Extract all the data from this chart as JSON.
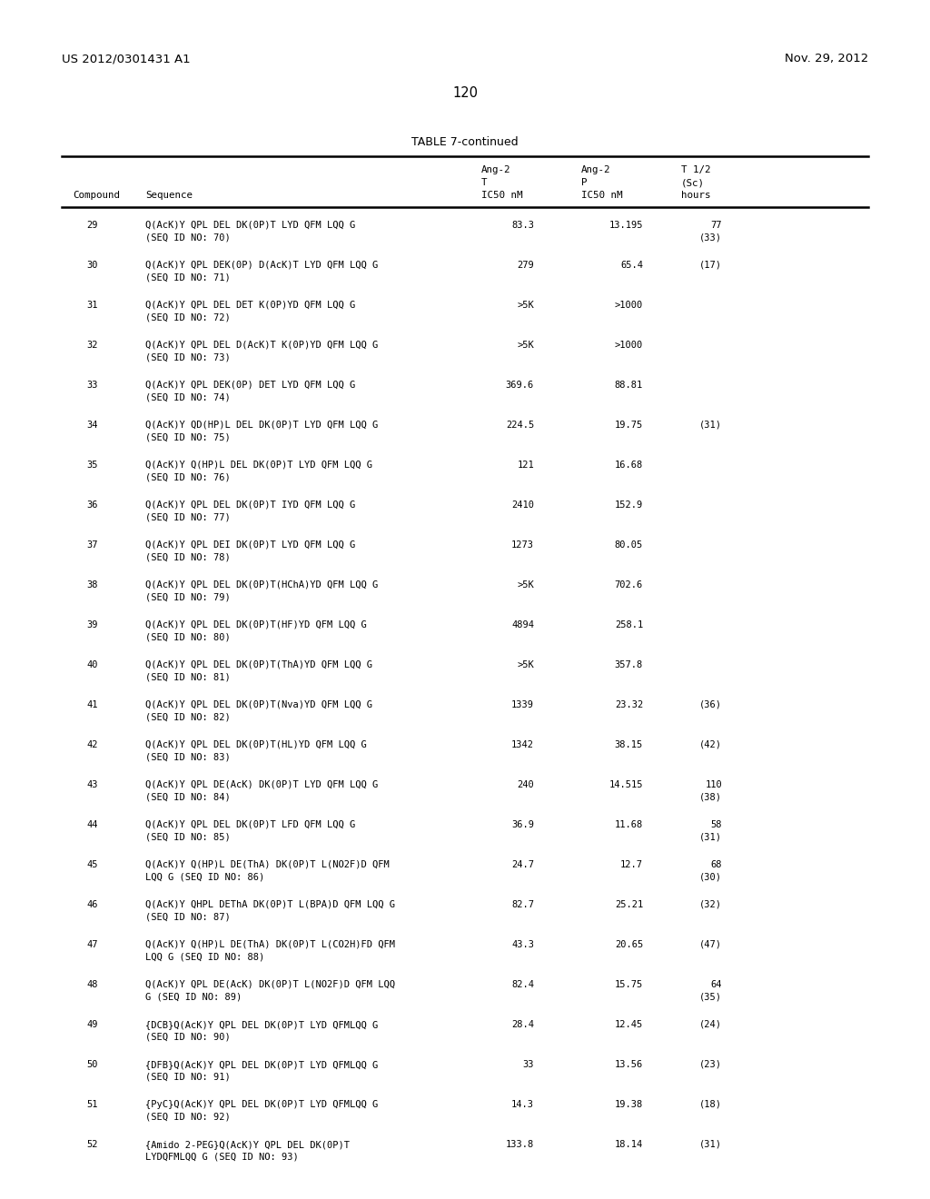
{
  "header_left": "US 2012/0301431 A1",
  "header_right": "Nov. 29, 2012",
  "page_number": "120",
  "table_title": "TABLE 7-continued",
  "rows": [
    {
      "num": "29",
      "seq1": "Q(AcK)Y QPL DEL DK(0P)T LYD QFM LQQ G",
      "seq2": "(SEQ ID NO: 70)",
      "ang2t": "83.3",
      "ang2p": "13.195",
      "half1": "77",
      "half2": "(33)"
    },
    {
      "num": "30",
      "seq1": "Q(AcK)Y QPL DEK(0P) D(AcK)T LYD QFM LQQ G",
      "seq2": "(SEQ ID NO: 71)",
      "ang2t": "279",
      "ang2p": "65.4",
      "half1": "(17)",
      "half2": ""
    },
    {
      "num": "31",
      "seq1": "Q(AcK)Y QPL DEL DET K(0P)YD QFM LQQ G",
      "seq2": "(SEQ ID NO: 72)",
      "ang2t": ">5K",
      "ang2p": ">1000",
      "half1": "",
      "half2": ""
    },
    {
      "num": "32",
      "seq1": "Q(AcK)Y QPL DEL D(AcK)T K(0P)YD QFM LQQ G",
      "seq2": "(SEQ ID NO: 73)",
      "ang2t": ">5K",
      "ang2p": ">1000",
      "half1": "",
      "half2": ""
    },
    {
      "num": "33",
      "seq1": "Q(AcK)Y QPL DEK(0P) DET LYD QFM LQQ G",
      "seq2": "(SEQ ID NO: 74)",
      "ang2t": "369.6",
      "ang2p": "88.81",
      "half1": "",
      "half2": ""
    },
    {
      "num": "34",
      "seq1": "Q(AcK)Y QD(HP)L DEL DK(0P)T LYD QFM LQQ G",
      "seq2": "(SEQ ID NO: 75)",
      "ang2t": "224.5",
      "ang2p": "19.75",
      "half1": "(31)",
      "half2": ""
    },
    {
      "num": "35",
      "seq1": "Q(AcK)Y Q(HP)L DEL DK(0P)T LYD QFM LQQ G",
      "seq2": "(SEQ ID NO: 76)",
      "ang2t": "121",
      "ang2p": "16.68",
      "half1": "",
      "half2": ""
    },
    {
      "num": "36",
      "seq1": "Q(AcK)Y QPL DEL DK(0P)T IYD QFM LQQ G",
      "seq2": "(SEQ ID NO: 77)",
      "ang2t": "2410",
      "ang2p": "152.9",
      "half1": "",
      "half2": ""
    },
    {
      "num": "37",
      "seq1": "Q(AcK)Y QPL DEI DK(0P)T LYD QFM LQQ G",
      "seq2": "(SEQ ID NO: 78)",
      "ang2t": "1273",
      "ang2p": "80.05",
      "half1": "",
      "half2": ""
    },
    {
      "num": "38",
      "seq1": "Q(AcK)Y QPL DEL DK(0P)T(HChA)YD QFM LQQ G",
      "seq2": "(SEQ ID NO: 79)",
      "ang2t": ">5K",
      "ang2p": "702.6",
      "half1": "",
      "half2": ""
    },
    {
      "num": "39",
      "seq1": "Q(AcK)Y QPL DEL DK(0P)T(HF)YD QFM LQQ G",
      "seq2": "(SEQ ID NO: 80)",
      "ang2t": "4894",
      "ang2p": "258.1",
      "half1": "",
      "half2": ""
    },
    {
      "num": "40",
      "seq1": "Q(AcK)Y QPL DEL DK(0P)T(ThA)YD QFM LQQ G",
      "seq2": "(SEQ ID NO: 81)",
      "ang2t": ">5K",
      "ang2p": "357.8",
      "half1": "",
      "half2": ""
    },
    {
      "num": "41",
      "seq1": "Q(AcK)Y QPL DEL DK(0P)T(Nva)YD QFM LQQ G",
      "seq2": "(SEQ ID NO: 82)",
      "ang2t": "1339",
      "ang2p": "23.32",
      "half1": "(36)",
      "half2": ""
    },
    {
      "num": "42",
      "seq1": "Q(AcK)Y QPL DEL DK(0P)T(HL)YD QFM LQQ G",
      "seq2": "(SEQ ID NO: 83)",
      "ang2t": "1342",
      "ang2p": "38.15",
      "half1": "(42)",
      "half2": ""
    },
    {
      "num": "43",
      "seq1": "Q(AcK)Y QPL DE(AcK) DK(0P)T LYD QFM LQQ G",
      "seq2": "(SEQ ID NO: 84)",
      "ang2t": "240",
      "ang2p": "14.515",
      "half1": "110",
      "half2": "(38)"
    },
    {
      "num": "44",
      "seq1": "Q(AcK)Y QPL DEL DK(0P)T LFD QFM LQQ G",
      "seq2": "(SEQ ID NO: 85)",
      "ang2t": "36.9",
      "ang2p": "11.68",
      "half1": "58",
      "half2": "(31)"
    },
    {
      "num": "45",
      "seq1": "Q(AcK)Y Q(HP)L DE(ThA) DK(0P)T L(NO2F)D QFM",
      "seq2": "LQQ G (SEQ ID NO: 86)",
      "ang2t": "24.7",
      "ang2p": "12.7",
      "half1": "68",
      "half2": "(30)"
    },
    {
      "num": "46",
      "seq1": "Q(AcK)Y QHPL DEThA DK(0P)T L(BPA)D QFM LQQ G",
      "seq2": "(SEQ ID NO: 87)",
      "ang2t": "82.7",
      "ang2p": "25.21",
      "half1": "(32)",
      "half2": ""
    },
    {
      "num": "47",
      "seq1": "Q(AcK)Y Q(HP)L DE(ThA) DK(0P)T L(CO2H)FD QFM",
      "seq2": "LQQ G (SEQ ID NO: 88)",
      "ang2t": "43.3",
      "ang2p": "20.65",
      "half1": "(47)",
      "half2": ""
    },
    {
      "num": "48",
      "seq1": "Q(AcK)Y QPL DE(AcK) DK(0P)T L(NO2F)D QFM LQQ",
      "seq2": "G (SEQ ID NO: 89)",
      "ang2t": "82.4",
      "ang2p": "15.75",
      "half1": "64",
      "half2": "(35)"
    },
    {
      "num": "49",
      "seq1": "{DCB}Q(AcK)Y QPL DEL DK(0P)T LYD QFMLQQ G",
      "seq2": "(SEQ ID NO: 90)",
      "ang2t": "28.4",
      "ang2p": "12.45",
      "half1": "(24)",
      "half2": ""
    },
    {
      "num": "50",
      "seq1": "{DFB}Q(AcK)Y QPL DEL DK(0P)T LYD QFMLQQ G",
      "seq2": "(SEQ ID NO: 91)",
      "ang2t": "33",
      "ang2p": "13.56",
      "half1": "(23)",
      "half2": ""
    },
    {
      "num": "51",
      "seq1": "{PyC}Q(AcK)Y QPL DEL DK(0P)T LYD QFMLQQ G",
      "seq2": "(SEQ ID NO: 92)",
      "ang2t": "14.3",
      "ang2p": "19.38",
      "half1": "(18)",
      "half2": ""
    },
    {
      "num": "52",
      "seq1": "{Amido 2-PEG}Q(AcK)Y QPL DEL DK(0P)T",
      "seq2": "LYDQFMLQQ G (SEQ ID NO: 93)",
      "ang2t": "133.8",
      "ang2p": "18.14",
      "half1": "(31)",
      "half2": ""
    }
  ],
  "bg_color": "#ffffff",
  "text_color": "#000000"
}
